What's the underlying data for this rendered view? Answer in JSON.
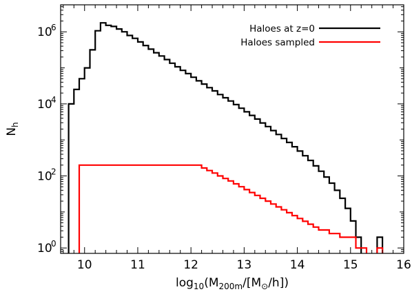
{
  "chart_data": {
    "type": "histogram",
    "xlabel": "log10(M200m/[M⊙/h])",
    "ylabel": "Nh",
    "xlim": [
      9.55,
      16.0
    ],
    "ylim_log10": [
      -0.15,
      6.75
    ],
    "yscale": "log",
    "grid": false,
    "legend_position": "top-right",
    "x_ticks": [
      10,
      11,
      12,
      13,
      14,
      15,
      16
    ],
    "x_tick_labels": [
      "10",
      "11",
      "12",
      "13",
      "14",
      "15",
      "16"
    ],
    "y_ticks_log10": [
      0,
      2,
      4,
      6
    ],
    "y_tick_labels": [
      "10",
      "10",
      "10",
      "10"
    ],
    "y_tick_exponents": [
      "0",
      "2",
      "4",
      "6"
    ],
    "series": [
      {
        "name": "Haloes at z=0",
        "color": "#000000",
        "edges": [
          9.7,
          9.8,
          9.9,
          10.0,
          10.1,
          10.2,
          10.3,
          10.4,
          10.5,
          10.6,
          10.7,
          10.8,
          10.9,
          11.0,
          11.1,
          11.2,
          11.3,
          11.4,
          11.5,
          11.6,
          11.7,
          11.8,
          11.9,
          12.0,
          12.1,
          12.2,
          12.3,
          12.4,
          12.5,
          12.6,
          12.7,
          12.8,
          12.9,
          13.0,
          13.1,
          13.2,
          13.3,
          13.4,
          13.5,
          13.6,
          13.7,
          13.8,
          13.9,
          14.0,
          14.1,
          14.2,
          14.3,
          14.4,
          14.5,
          14.6,
          14.7,
          14.8,
          14.9,
          15.0,
          15.1,
          15.2,
          15.3,
          15.4,
          15.5,
          15.6
        ],
        "log10_counts": [
          4.0,
          4.4,
          4.7,
          5.0,
          5.5,
          6.03,
          6.25,
          6.18,
          6.15,
          6.08,
          6.0,
          5.9,
          5.82,
          5.72,
          5.62,
          5.52,
          5.42,
          5.33,
          5.23,
          5.13,
          5.03,
          4.93,
          4.84,
          4.74,
          4.64,
          4.55,
          4.45,
          4.36,
          4.26,
          4.17,
          4.08,
          3.98,
          3.88,
          3.78,
          3.68,
          3.58,
          3.47,
          3.37,
          3.26,
          3.15,
          3.04,
          2.93,
          2.81,
          2.69,
          2.56,
          2.43,
          2.28,
          2.13,
          1.97,
          1.8,
          1.6,
          1.38,
          1.1,
          0.75,
          0.3,
          null,
          null,
          null,
          0.3
        ]
      },
      {
        "name": "Haloes sampled",
        "color": "#ff0000",
        "edges": [
          9.9,
          10.0,
          10.1,
          10.2,
          10.3,
          10.4,
          10.5,
          10.6,
          10.7,
          10.8,
          10.9,
          11.0,
          11.1,
          11.2,
          11.3,
          11.4,
          11.5,
          11.6,
          11.7,
          11.8,
          11.9,
          12.0,
          12.1,
          12.2,
          12.3,
          12.4,
          12.5,
          12.6,
          12.7,
          12.8,
          12.9,
          13.0,
          13.1,
          13.2,
          13.3,
          13.4,
          13.5,
          13.6,
          13.7,
          13.8,
          13.9,
          14.0,
          14.1,
          14.2,
          14.3,
          14.4,
          14.5,
          14.6,
          14.7,
          14.8,
          14.9,
          15.0,
          15.1,
          15.2,
          15.3,
          15.4,
          15.5,
          15.6
        ],
        "log10_counts": [
          2.3,
          2.3,
          2.3,
          2.3,
          2.3,
          2.3,
          2.3,
          2.3,
          2.3,
          2.3,
          2.3,
          2.3,
          2.3,
          2.3,
          2.3,
          2.3,
          2.3,
          2.3,
          2.3,
          2.3,
          2.3,
          2.3,
          2.3,
          2.22,
          2.15,
          2.08,
          2.0,
          1.93,
          1.86,
          1.78,
          1.7,
          1.62,
          1.54,
          1.46,
          1.38,
          1.3,
          1.22,
          1.14,
          1.06,
          0.98,
          0.9,
          0.82,
          0.74,
          0.66,
          0.58,
          0.5,
          0.5,
          0.4,
          0.4,
          0.3,
          0.3,
          0.3,
          0.0,
          0.0,
          null,
          null,
          0.0
        ]
      }
    ]
  }
}
